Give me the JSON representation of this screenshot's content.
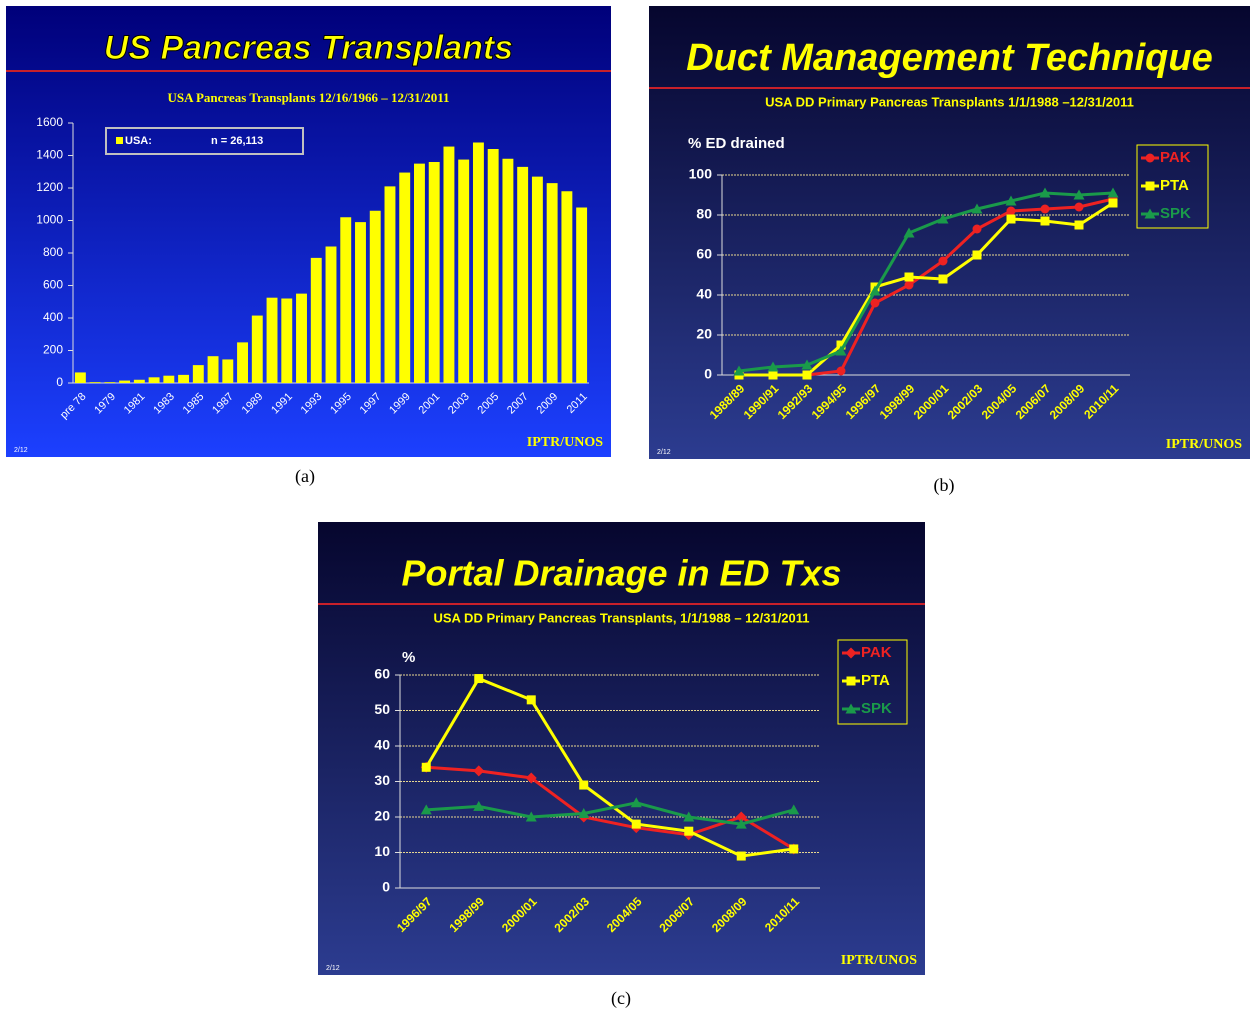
{
  "chart_data": [
    {
      "type": "bar",
      "title": "US Pancreas Transplants",
      "subtitle": "USA Pancreas Transplants 12/16/1966 – 12/31/2011",
      "categories": [
        "pre 78",
        null,
        "1979",
        null,
        "1981",
        null,
        "1983",
        null,
        "1985",
        null,
        "1987",
        null,
        "1989",
        null,
        "1991",
        null,
        "1993",
        null,
        "1995",
        null,
        "1997",
        null,
        "1999",
        null,
        "2001",
        null,
        "2003",
        null,
        "2005",
        null,
        "2007",
        null,
        "2009",
        null,
        "2011"
      ],
      "series": [
        {
          "name": "USA:",
          "color": "#ffff00",
          "values": [
            65,
            5,
            5,
            15,
            20,
            35,
            45,
            50,
            110,
            165,
            145,
            250,
            415,
            525,
            520,
            550,
            770,
            840,
            1020,
            990,
            1060,
            1210,
            1295,
            1350,
            1360,
            1455,
            1375,
            1480,
            1440,
            1380,
            1330,
            1270,
            1230,
            1180,
            1080
          ]
        }
      ],
      "legend_note": "n = 26,113",
      "ylim": [
        0,
        1600
      ],
      "yticks": [
        0,
        200,
        400,
        600,
        800,
        1000,
        1200,
        1400,
        1600
      ],
      "grid": false,
      "legend": "top-left",
      "footer_left": "2/12",
      "footer_right": "IPTR/UNOS",
      "caption": "(a)"
    },
    {
      "type": "line",
      "title": "Duct Management Technique",
      "subtitle": "USA DD Primary Pancreas Transplants 1/1/1988 –12/31/2011",
      "y_label": "% ED drained",
      "categories": [
        "1988/89",
        "1990/91",
        "1992/93",
        "1994/95",
        "1996/97",
        "1998/99",
        "2000/01",
        "2002/03",
        "2004/05",
        "2006/07",
        "2008/09",
        "2010/11"
      ],
      "series": [
        {
          "name": "PAK",
          "color": "#ee2222",
          "marker": "circle",
          "values": [
            0,
            0,
            0,
            2,
            36,
            45,
            57,
            73,
            82,
            83,
            84,
            88
          ]
        },
        {
          "name": "PTA",
          "color": "#ffff00",
          "marker": "square",
          "values": [
            0,
            0,
            0,
            15,
            44,
            49,
            48,
            60,
            78,
            77,
            75,
            86
          ]
        },
        {
          "name": "SPK",
          "color": "#1a9a4a",
          "marker": "triangle",
          "values": [
            2,
            4,
            5,
            12,
            42,
            71,
            78,
            83,
            87,
            91,
            90,
            91
          ]
        }
      ],
      "ylim": [
        0,
        100
      ],
      "yticks": [
        0,
        20,
        40,
        60,
        80,
        100
      ],
      "grid": true,
      "legend": "top-right",
      "footer_left": "2/12",
      "footer_right": "IPTR/UNOS",
      "caption": "(b)"
    },
    {
      "type": "line",
      "title": "Portal Drainage in ED Txs",
      "subtitle": "USA DD Primary Pancreas Transplants, 1/1/1988 – 12/31/2011",
      "y_label": "%",
      "categories": [
        "1996/97",
        "1998/99",
        "2000/01",
        "2002/03",
        "2004/05",
        "2006/07",
        "2008/09",
        "2010/11"
      ],
      "series": [
        {
          "name": "PAK",
          "color": "#ee2222",
          "marker": "diamond",
          "values": [
            34,
            33,
            31,
            20,
            17,
            15,
            20,
            11
          ]
        },
        {
          "name": "PTA",
          "color": "#ffff00",
          "marker": "square",
          "values": [
            34,
            59,
            53,
            29,
            18,
            16,
            9,
            11
          ]
        },
        {
          "name": "SPK",
          "color": "#1a9a4a",
          "marker": "triangle",
          "values": [
            22,
            23,
            20,
            21,
            24,
            20,
            18,
            22
          ]
        }
      ],
      "ylim": [
        0,
        60
      ],
      "yticks": [
        0,
        10,
        20,
        30,
        40,
        50,
        60
      ],
      "grid": true,
      "legend": "top-right",
      "footer_left": "2/12",
      "footer_right": "IPTR/UNOS",
      "caption": "(c)"
    }
  ]
}
